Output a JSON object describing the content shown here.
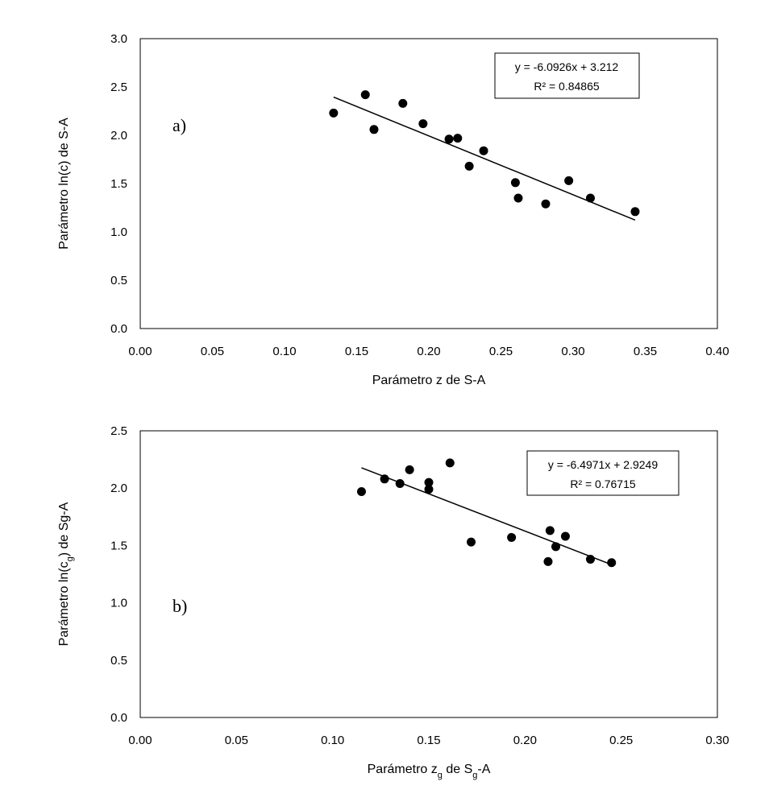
{
  "chart_data": [
    {
      "type": "scatter",
      "panel_label": "a)",
      "xlabel": "Parámetro z de S-A",
      "ylabel": "Parámetro ln(c) de S-A",
      "xlim": [
        0.0,
        0.4
      ],
      "ylim": [
        0.0,
        3.0
      ],
      "xticks": [
        "0.00",
        "0.05",
        "0.10",
        "0.15",
        "0.20",
        "0.25",
        "0.30",
        "0.35",
        "0.40"
      ],
      "yticks": [
        "0.0",
        "0.5",
        "1.0",
        "1.5",
        "2.0",
        "2.5",
        "3.0"
      ],
      "x": [
        0.134,
        0.156,
        0.162,
        0.182,
        0.196,
        0.214,
        0.22,
        0.228,
        0.238,
        0.26,
        0.262,
        0.281,
        0.297,
        0.312,
        0.343
      ],
      "y": [
        2.23,
        2.42,
        2.06,
        2.33,
        2.12,
        1.96,
        1.97,
        1.68,
        1.84,
        1.51,
        1.35,
        1.29,
        1.53,
        1.35,
        1.21
      ],
      "trendline": {
        "slope": -6.0926,
        "intercept": 3.212,
        "x_range": [
          0.134,
          0.343
        ]
      },
      "equation": "y = -6.0926x + 3.212",
      "r2": "R² = 0.84865"
    },
    {
      "type": "scatter",
      "panel_label": "b)",
      "xlabel_main": "Parámetro z",
      "xlabel_sub1": "g",
      "xlabel_mid": " de S",
      "xlabel_sub2": "g",
      "xlabel_end": "-A",
      "ylabel_main": "Parámetro ln(c",
      "ylabel_sub": "g",
      "ylabel_end": ") de Sg-A",
      "xlim": [
        0.0,
        0.3
      ],
      "ylim": [
        0.0,
        2.5
      ],
      "xticks": [
        "0.00",
        "0.05",
        "0.10",
        "0.15",
        "0.20",
        "0.25",
        "0.30"
      ],
      "yticks": [
        "0.0",
        "0.5",
        "1.0",
        "1.5",
        "2.0",
        "2.5"
      ],
      "x": [
        0.115,
        0.127,
        0.135,
        0.14,
        0.15,
        0.15,
        0.161,
        0.172,
        0.193,
        0.212,
        0.213,
        0.216,
        0.221,
        0.234,
        0.245
      ],
      "y": [
        1.97,
        2.08,
        2.04,
        2.16,
        2.05,
        1.99,
        2.22,
        1.53,
        1.57,
        1.36,
        1.63,
        1.49,
        1.58,
        1.38,
        1.35
      ],
      "trendline": {
        "slope": -6.4971,
        "intercept": 2.9249,
        "x_range": [
          0.115,
          0.245
        ]
      },
      "equation": "y = -6.4971x + 2.9249",
      "r2": "R² = 0.76715"
    }
  ]
}
